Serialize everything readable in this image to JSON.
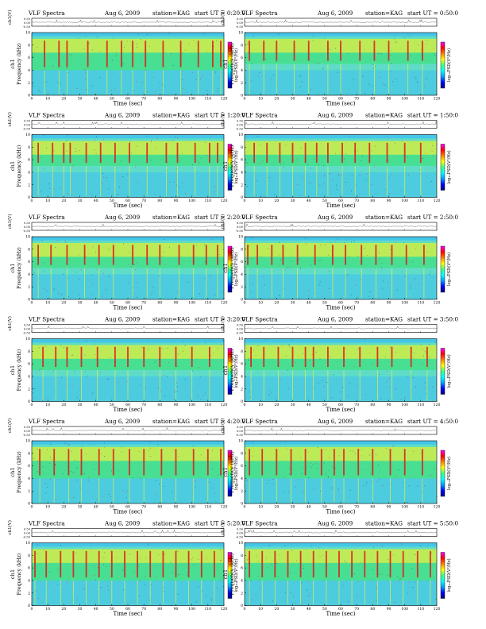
{
  "page": {
    "common": {
      "title": "VLF Spectra",
      "date": "Aug 6, 2009",
      "station": "station=KAG",
      "start_prefix": "start  UT =",
      "xlabel": "Time  (sec)",
      "ylabel": "Frequency  (kHz)",
      "amp_label": "ch1(V)",
      "channel_label": "ch1",
      "colorbar_label": "log₁₀PSD(V²/Hz)"
    },
    "colors": {
      "background": "#5fdcc8",
      "band_low": "#3cc0f0",
      "band_mid": "#40e080",
      "band_high": "#f0f040",
      "emission": "#e01818",
      "dark": "#0a2a90",
      "colorbar_stops": [
        "#000080",
        "#0000ff",
        "#00a0ff",
        "#00ffff",
        "#40ff80",
        "#ffff00",
        "#ff8000",
        "#ff0000",
        "#ff00ff"
      ]
    }
  },
  "chart_data": [
    {
      "type": "heatmap",
      "start_ut": "0:20:0",
      "x_range": [
        0,
        120
      ],
      "x_ticks": [
        0,
        10,
        20,
        30,
        40,
        50,
        60,
        70,
        80,
        90,
        100,
        110,
        120
      ],
      "y_range": [
        0,
        10
      ],
      "y_ticks": [
        0,
        2,
        4,
        6,
        8,
        10
      ],
      "amp_range": [
        -0.5,
        0.5
      ],
      "amp_ticks": [
        "0.50",
        "0.00",
        "-0.50"
      ],
      "emission_band_khz": [
        4,
        9
      ],
      "emission_times_sec": [
        8,
        17,
        22,
        35,
        47,
        56,
        63,
        71,
        82,
        93,
        104,
        113,
        118
      ]
    },
    {
      "type": "heatmap",
      "start_ut": "0:50:0",
      "x_range": [
        0,
        120
      ],
      "x_ticks": [
        0,
        10,
        20,
        30,
        40,
        50,
        60,
        70,
        80,
        90,
        100,
        110,
        120
      ],
      "y_range": [
        0,
        10
      ],
      "y_ticks": [
        0,
        2,
        4,
        6,
        8,
        10
      ],
      "amp_range": [
        -0.5,
        0.5
      ],
      "amp_ticks": [
        "0.50",
        "0.00",
        "-0.50"
      ],
      "emission_band_khz": [
        5,
        9
      ],
      "emission_times_sec": [
        3,
        12,
        20,
        31,
        40,
        52,
        60,
        72,
        81,
        90,
        102,
        111
      ]
    },
    {
      "type": "heatmap",
      "start_ut": "1:20:0",
      "x_range": [
        0,
        120
      ],
      "x_ticks": [
        0,
        10,
        20,
        30,
        40,
        50,
        60,
        70,
        80,
        90,
        100,
        110,
        120
      ],
      "y_range": [
        0,
        10
      ],
      "y_ticks": [
        0,
        2,
        4,
        6,
        8,
        10
      ],
      "amp_range": [
        -0.5,
        0.5
      ],
      "amp_ticks": [
        "0.50",
        "0.00",
        "-0.50"
      ],
      "emission_band_khz": [
        5,
        9
      ],
      "emission_times_sec": [
        4,
        13,
        20,
        24,
        34,
        43,
        52,
        61,
        72,
        84,
        91,
        102,
        111,
        116
      ]
    },
    {
      "type": "heatmap",
      "start_ut": "1:50:0",
      "x_range": [
        0,
        120
      ],
      "x_ticks": [
        0,
        10,
        20,
        30,
        40,
        50,
        60,
        70,
        80,
        90,
        100,
        110,
        120
      ],
      "y_range": [
        0,
        10
      ],
      "y_ticks": [
        0,
        2,
        4,
        6,
        8,
        10
      ],
      "amp_range": [
        -0.5,
        0.5
      ],
      "amp_ticks": [
        "0.50",
        "0.00",
        "-0.50"
      ],
      "emission_band_khz": [
        5,
        9
      ],
      "emission_times_sec": [
        6,
        14,
        22,
        30,
        38,
        45,
        52,
        61,
        69,
        78,
        89,
        100,
        110
      ]
    },
    {
      "type": "heatmap",
      "start_ut": "2:20:0",
      "x_range": [
        0,
        120
      ],
      "x_ticks": [
        0,
        10,
        20,
        30,
        40,
        50,
        60,
        70,
        80,
        90,
        100,
        110,
        120
      ],
      "y_range": [
        0,
        10
      ],
      "y_ticks": [
        0,
        2,
        4,
        6,
        8,
        10
      ],
      "amp_range": [
        -0.5,
        0.5
      ],
      "amp_ticks": [
        "0.50",
        "0.00",
        "-0.50"
      ],
      "emission_band_khz": [
        5,
        9
      ],
      "emission_times_sec": [
        4,
        12,
        22,
        33,
        42,
        51,
        63,
        72,
        80,
        92,
        101,
        109,
        116
      ]
    },
    {
      "type": "heatmap",
      "start_ut": "2:50:0",
      "x_range": [
        0,
        120
      ],
      "x_ticks": [
        0,
        10,
        20,
        30,
        40,
        50,
        60,
        70,
        80,
        90,
        100,
        110,
        120
      ],
      "y_range": [
        0,
        10
      ],
      "y_ticks": [
        0,
        2,
        4,
        6,
        8,
        10
      ],
      "amp_range": [
        -0.5,
        0.5
      ],
      "amp_ticks": [
        "0.50",
        "0.00",
        "-0.50"
      ],
      "emission_band_khz": [
        5,
        9
      ],
      "emission_times_sec": [
        2,
        8,
        17,
        24,
        33,
        44,
        55,
        63,
        73,
        82,
        92,
        101,
        112
      ]
    },
    {
      "type": "heatmap",
      "start_ut": "3:20:0",
      "x_range": [
        0,
        120
      ],
      "x_ticks": [
        0,
        10,
        20,
        30,
        40,
        50,
        60,
        70,
        80,
        90,
        100,
        110,
        120
      ],
      "y_range": [
        0,
        10
      ],
      "y_ticks": [
        0,
        2,
        4,
        6,
        8,
        10
      ],
      "amp_range": [
        -0.5,
        0.5
      ],
      "amp_ticks": [
        "0.50",
        "0.00",
        "-0.50"
      ],
      "emission_band_khz": [
        5,
        9
      ],
      "emission_times_sec": [
        7,
        15,
        22,
        31,
        41,
        52,
        60,
        70,
        80,
        90,
        100,
        111
      ]
    },
    {
      "type": "heatmap",
      "start_ut": "3:50:0",
      "x_range": [
        0,
        120
      ],
      "x_ticks": [
        0,
        10,
        20,
        30,
        40,
        50,
        60,
        70,
        80,
        90,
        100,
        110,
        120
      ],
      "y_range": [
        0,
        10
      ],
      "y_ticks": [
        0,
        2,
        4,
        6,
        8,
        10
      ],
      "amp_range": [
        -0.5,
        0.5
      ],
      "amp_ticks": [
        "0.50",
        "0.00",
        "-0.50"
      ],
      "emission_band_khz": [
        5,
        9
      ],
      "emission_times_sec": [
        4,
        12,
        21,
        30,
        38,
        43,
        52,
        62,
        72,
        83,
        92,
        104,
        114
      ]
    },
    {
      "type": "heatmap",
      "start_ut": "4:20:0",
      "x_range": [
        0,
        120
      ],
      "x_ticks": [
        0,
        10,
        20,
        30,
        40,
        50,
        60,
        70,
        80,
        90,
        100,
        110,
        120
      ],
      "y_range": [
        0,
        10
      ],
      "y_ticks": [
        0,
        2,
        4,
        6,
        8,
        10
      ],
      "amp_range": [
        -0.5,
        0.5
      ],
      "amp_ticks": [
        "0.50",
        "0.00",
        "-0.50"
      ],
      "emission_band_khz": [
        4,
        9
      ],
      "emission_times_sec": [
        5,
        14,
        23,
        31,
        42,
        51,
        61,
        70,
        81,
        90,
        101,
        110,
        118
      ]
    },
    {
      "type": "heatmap",
      "start_ut": "4:50:0",
      "x_range": [
        0,
        120
      ],
      "x_ticks": [
        0,
        10,
        20,
        30,
        40,
        50,
        60,
        70,
        80,
        90,
        100,
        110,
        120
      ],
      "y_range": [
        0,
        10
      ],
      "y_ticks": [
        0,
        2,
        4,
        6,
        8,
        10
      ],
      "amp_range": [
        -0.5,
        0.5
      ],
      "amp_ticks": [
        "0.50",
        "0.00",
        "-0.50"
      ],
      "emission_band_khz": [
        4,
        9
      ],
      "emission_times_sec": [
        3,
        11,
        20,
        29,
        38,
        48,
        56,
        62,
        71,
        80,
        91,
        100,
        111
      ]
    },
    {
      "type": "heatmap",
      "start_ut": "5:20:0",
      "x_range": [
        0,
        120
      ],
      "x_ticks": [
        0,
        10,
        20,
        30,
        40,
        50,
        60,
        70,
        80,
        90,
        100,
        110,
        120
      ],
      "y_range": [
        0,
        10
      ],
      "y_ticks": [
        0,
        2,
        4,
        6,
        8,
        10
      ],
      "amp_range": [
        -0.5,
        0.5
      ],
      "amp_ticks": [
        "0.50",
        "0.00",
        "-0.50"
      ],
      "emission_band_khz": [
        4,
        9
      ],
      "emission_times_sec": [
        2,
        9,
        18,
        26,
        34,
        42,
        50,
        58,
        66,
        74,
        82,
        90,
        98,
        106,
        114
      ]
    },
    {
      "type": "heatmap",
      "start_ut": "5:50:0",
      "x_range": [
        0,
        120
      ],
      "x_ticks": [
        0,
        10,
        20,
        30,
        40,
        50,
        60,
        70,
        80,
        90,
        100,
        110,
        120
      ],
      "y_range": [
        0,
        10
      ],
      "y_ticks": [
        0,
        2,
        4,
        6,
        8,
        10
      ],
      "amp_range": [
        -0.5,
        0.5
      ],
      "amp_ticks": [
        "0.50",
        "0.00",
        "-0.50"
      ],
      "emission_band_khz": [
        4,
        9
      ],
      "emission_times_sec": [
        3,
        11,
        19,
        27,
        35,
        43,
        51,
        59,
        67,
        75,
        83,
        91,
        99,
        108,
        116
      ]
    }
  ]
}
